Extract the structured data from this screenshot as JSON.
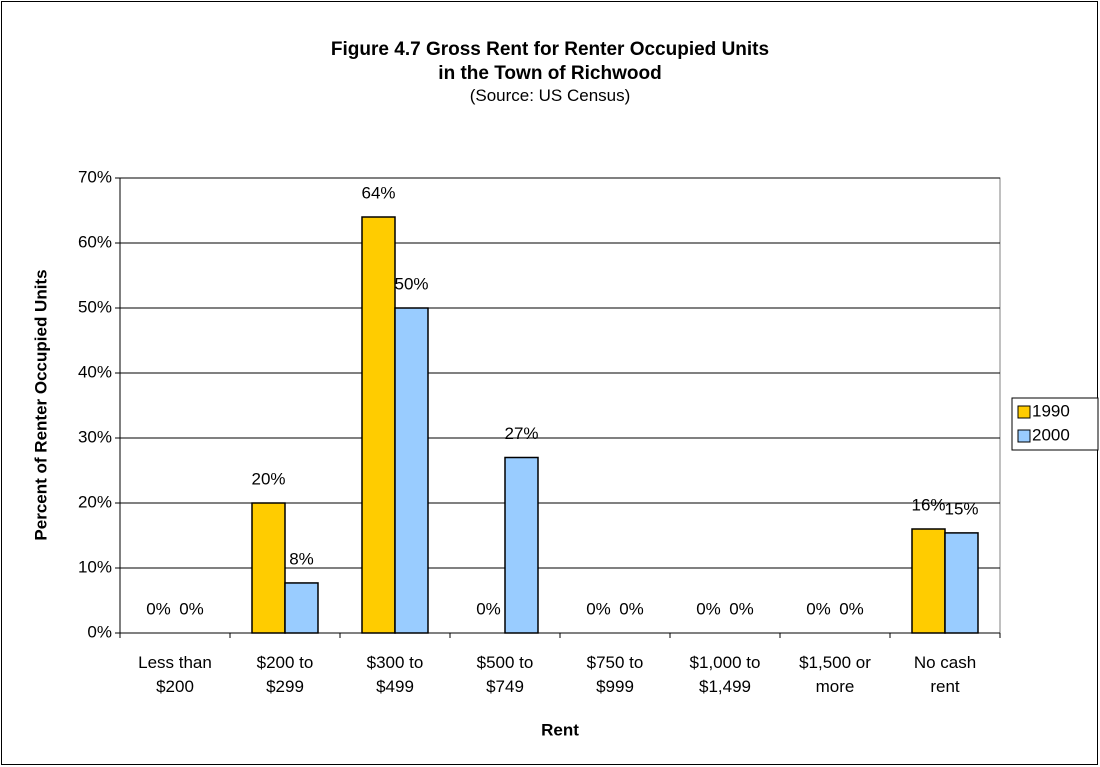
{
  "chart_data": {
    "type": "bar",
    "title": "Figure 4.7 Gross Rent for Renter Occupied Units\nin the Town of Richwood",
    "subtitle": "(Source: US Census)",
    "x_label": "Rent",
    "y_label": "Percent of Renter Occupied Units",
    "categories": [
      "Less than\n$200",
      "$200 to\n$299",
      "$300 to\n$499",
      "$500 to\n$749",
      "$750 to\n$999",
      "$1,000 to\n$1,499",
      "$1,500 or\nmore",
      "No cash\nrent"
    ],
    "series": [
      {
        "name": "1990",
        "color": "#ffcc00",
        "values": [
          0,
          20,
          64,
          0,
          0,
          0,
          0,
          16
        ],
        "value_labels": [
          "0%",
          "20%",
          "64%",
          "0%",
          "0%",
          "0%",
          "0%",
          "16%"
        ]
      },
      {
        "name": "2000",
        "color": "#99ccff",
        "values": [
          0,
          7.7,
          50,
          27,
          0,
          0,
          0,
          15.4
        ],
        "value_labels": [
          "0%",
          "8%",
          "50%",
          "27%",
          "0%",
          "0%",
          "0%",
          "15%"
        ]
      }
    ],
    "ylim": [
      0,
      70
    ],
    "yticks": [
      {
        "value": 0,
        "label": "0%"
      },
      {
        "value": 10,
        "label": "10%"
      },
      {
        "value": 20,
        "label": "20%"
      },
      {
        "value": 30,
        "label": "30%"
      },
      {
        "value": 40,
        "label": "40%"
      },
      {
        "value": 50,
        "label": "50%"
      },
      {
        "value": 60,
        "label": "60%"
      },
      {
        "value": 70,
        "label": "70%"
      }
    ],
    "grid": true,
    "legend": "right"
  }
}
